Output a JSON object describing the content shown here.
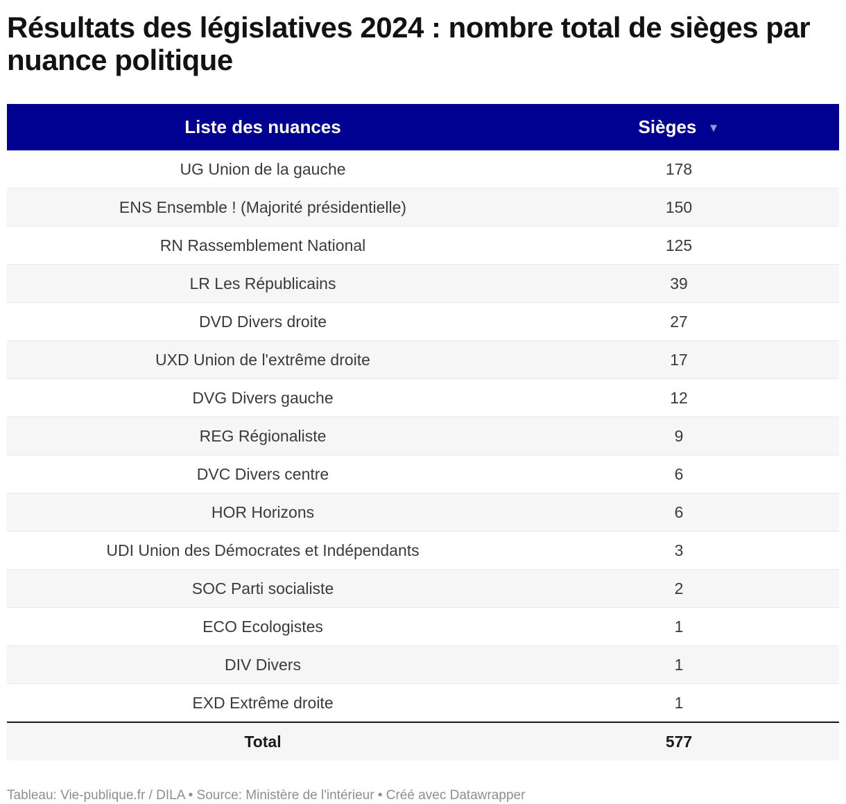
{
  "chart_data": {
    "type": "table",
    "title": "Résultats des législatives 2024 : nombre total de sièges par nuance politique",
    "columns": [
      "Liste des nuances",
      "Sièges"
    ],
    "rows": [
      [
        "UG Union de la gauche",
        178
      ],
      [
        "ENS Ensemble ! (Majorité présidentielle)",
        150
      ],
      [
        "RN Rassemblement National",
        125
      ],
      [
        "LR Les Républicains",
        39
      ],
      [
        "DVD Divers droite",
        27
      ],
      [
        "UXD Union de l'extrême droite",
        17
      ],
      [
        "DVG Divers gauche",
        12
      ],
      [
        "REG Régionaliste",
        9
      ],
      [
        "DVC Divers centre",
        6
      ],
      [
        "HOR Horizons",
        6
      ],
      [
        "UDI Union des Démocrates et Indépendants",
        3
      ],
      [
        "SOC Parti socialiste",
        2
      ],
      [
        "ECO Ecologistes",
        1
      ],
      [
        "DIV Divers",
        1
      ],
      [
        "EXD Extrême droite",
        1
      ]
    ],
    "total_row": {
      "label": "Total",
      "value": 577
    },
    "sort": {
      "column": "Sièges",
      "direction": "desc",
      "indicator": "▼"
    },
    "footer": "Tableau: Vie-publique.fr / DILA • Source: Ministère de l'intérieur • Créé avec Datawrapper",
    "layout_hints": {
      "zebra_striping": true,
      "header_position": "top",
      "columns_alignment": "center"
    }
  },
  "title_lines": [
    "Résultats des législatives 2024 : nombre total de sièges par",
    "nuance politique"
  ],
  "colors": {
    "header_bg": "#000091",
    "header_text": "#ffffff",
    "sort_indicator": "#9298cf",
    "zebra_row_bg": "#f6f6f6",
    "row_border": "#e9e9e9",
    "total_border": "#161616",
    "body_text": "#3a3a3a",
    "title_text": "#121212",
    "footer_text": "#8e8e8e"
  }
}
